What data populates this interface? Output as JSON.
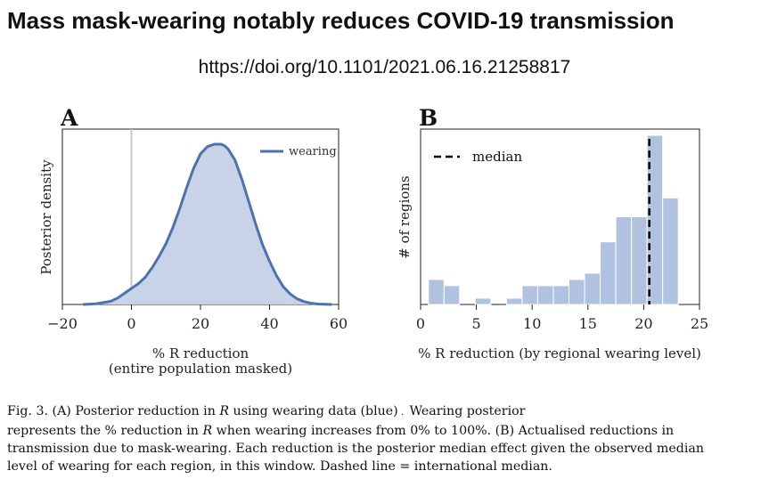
{
  "header": {
    "title": "Mass mask-wearing notably reduces COVID-19 transmission",
    "doi": "https://doi.org/10.1101/2021.06.16.21258817"
  },
  "panels": {
    "a_letter": "A",
    "b_letter": "B"
  },
  "colors": {
    "fill": "#c9d3e8",
    "line": "#4c72b0",
    "bar": "#b0c2e0",
    "median": "#000000",
    "zero_line": "#c8c8c8"
  },
  "chart_data": [
    {
      "type": "area",
      "xlabel_line1": "% R reduction",
      "xlabel_line2": "(entire population masked)",
      "ylabel": "Posterior density",
      "xlim": [
        -20,
        60
      ],
      "xticks": [
        "−20",
        "0",
        "20",
        "40",
        "60"
      ],
      "xtick_values": [
        -20,
        0,
        20,
        40,
        60
      ],
      "legend": "wearing",
      "zero_line_x": 0,
      "x": [
        -14,
        -10,
        -6,
        -4,
        -2,
        0,
        2,
        4,
        6,
        8,
        10,
        12,
        14,
        16,
        18,
        20,
        22,
        24,
        25,
        26,
        27,
        28,
        30,
        32,
        34,
        36,
        38,
        40,
        42,
        44,
        46,
        48,
        50,
        52,
        54,
        56,
        58
      ],
      "y": [
        0.0,
        0.005,
        0.02,
        0.04,
        0.07,
        0.1,
        0.13,
        0.17,
        0.23,
        0.3,
        0.38,
        0.48,
        0.6,
        0.73,
        0.85,
        0.94,
        0.985,
        1.0,
        1.0,
        1.0,
        0.99,
        0.97,
        0.9,
        0.78,
        0.64,
        0.5,
        0.37,
        0.27,
        0.18,
        0.11,
        0.065,
        0.035,
        0.018,
        0.008,
        0.003,
        0.001,
        0.0
      ]
    },
    {
      "type": "bar",
      "xlabel": "% R reduction (by regional wearing level)",
      "ylabel": "# of regions",
      "xlim": [
        0,
        25
      ],
      "xticks": [
        "0",
        "5",
        "10",
        "15",
        "20",
        "25"
      ],
      "xtick_values": [
        0,
        5,
        10,
        15,
        20,
        25
      ],
      "legend": "median",
      "median": 20.5,
      "bin_width": 1.4,
      "bin_starts": [
        0.7,
        2.1,
        3.5,
        4.9,
        6.3,
        7.7,
        9.1,
        10.5,
        11.9,
        13.3,
        14.7,
        16.1,
        17.5,
        18.9,
        20.3,
        21.7
      ],
      "counts": [
        2,
        1.5,
        0,
        0.5,
        0,
        0.5,
        1.5,
        1.5,
        1.5,
        2,
        2.5,
        5,
        7,
        7,
        13.5,
        8.5
      ],
      "ylim": [
        0,
        14
      ]
    }
  ],
  "caption": {
    "line1_a": "Fig. 3.  (A) Posterior reduction in ",
    "line1_r": "R",
    "line1_b": " using wearing data (blue)",
    "line1_c": "Wearing posterior",
    "line2_a": "represents the % reduction in ",
    "line2_r": "R",
    "line2_b": " when wearing increases from 0% to 100%. (B) Actualised reductions in",
    "line3": "transmission due to mask-wearing. Each reduction is the posterior median effect given the observed median",
    "line4": "level of wearing for each region, in this window. Dashed line = international median."
  }
}
